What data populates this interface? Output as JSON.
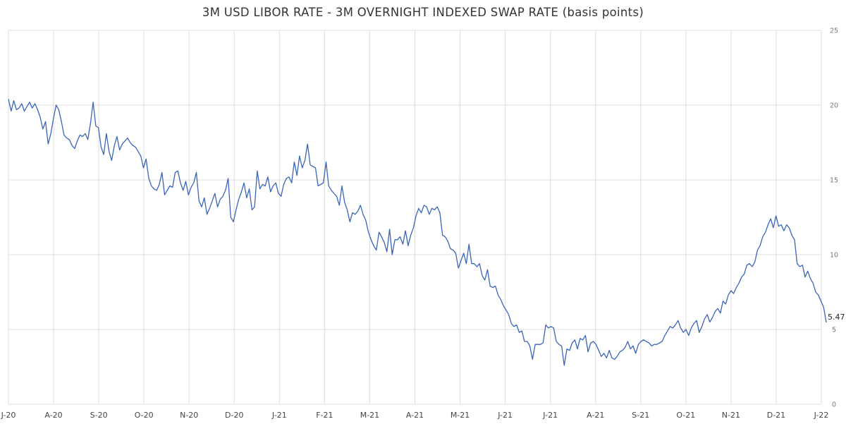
{
  "chart_data": {
    "type": "line",
    "title": "3M USD LIBOR RATE - 3M OVERNIGHT INDEXED SWAP RATE (basis points)",
    "xlabel": "",
    "ylabel": "",
    "ylim": [
      0,
      25
    ],
    "y_ticks": [
      "0",
      "5",
      "10",
      "15",
      "20",
      "25"
    ],
    "x_tick_labels": [
      "J-20",
      "A-20",
      "S-20",
      "O-20",
      "N-20",
      "D-20",
      "J-21",
      "F-21",
      "M-21",
      "A-21",
      "M-21",
      "J-21",
      "J-21",
      "A-21",
      "S-21",
      "O-21",
      "N-21",
      "D-21",
      "J-22"
    ],
    "grid": true,
    "legend": "none",
    "line_color": "#3a64b9",
    "last_value_label": "5.47",
    "series": [
      {
        "x_start": "2020-07-01",
        "x_end": "2022-01-31",
        "values": [
          20.4,
          19.6,
          20.3,
          19.7,
          19.8,
          20.1,
          19.6,
          19.9,
          20.2,
          19.8,
          20.1,
          19.7,
          19.2,
          18.4,
          18.9,
          17.4,
          18.1,
          19.1,
          20.0,
          19.7,
          18.9,
          18.0,
          17.8,
          17.7,
          17.3,
          17.1,
          17.6,
          18.0,
          17.9,
          18.1,
          17.7,
          18.8,
          20.2,
          18.6,
          18.5,
          17.2,
          16.7,
          18.1,
          16.9,
          16.3,
          17.3,
          17.9,
          17.0,
          17.4,
          17.6,
          17.8,
          17.5,
          17.3,
          17.2,
          16.9,
          16.6,
          15.8,
          16.4,
          15.1,
          14.6,
          14.4,
          14.3,
          14.7,
          15.5,
          14.0,
          14.3,
          14.6,
          14.5,
          15.5,
          15.6,
          14.8,
          14.3,
          14.9,
          14.0,
          14.5,
          14.8,
          15.5,
          13.6,
          13.2,
          13.8,
          12.7,
          13.1,
          13.6,
          14.1,
          13.2,
          13.7,
          13.9,
          14.3,
          15.1,
          12.5,
          12.2,
          13.0,
          13.7,
          14.2,
          14.8,
          13.8,
          14.4,
          13.0,
          13.2,
          15.6,
          14.4,
          14.7,
          14.6,
          15.2,
          14.2,
          14.6,
          14.8,
          14.1,
          13.9,
          14.7,
          15.1,
          15.2,
          14.8,
          16.2,
          15.3,
          16.6,
          15.8,
          16.3,
          17.4,
          16.0,
          15.9,
          15.8,
          14.6,
          14.7,
          14.8,
          16.2,
          14.6,
          14.3,
          14.1,
          13.9,
          13.3,
          14.6,
          13.5,
          13.0,
          12.2,
          12.8,
          12.7,
          12.9,
          13.3,
          12.7,
          12.3,
          11.5,
          11.0,
          10.6,
          10.3,
          11.5,
          11.2,
          10.8,
          10.2,
          11.7,
          10.0,
          11.0,
          11.0,
          11.2,
          10.7,
          11.6,
          10.6,
          11.3,
          11.8,
          12.6,
          13.1,
          12.8,
          13.3,
          13.2,
          12.7,
          13.1,
          13.0,
          13.2,
          12.8,
          11.3,
          11.2,
          10.9,
          10.4,
          10.3,
          10.1,
          9.1,
          9.6,
          10.1,
          9.4,
          10.7,
          9.4,
          9.4,
          9.2,
          9.4,
          8.6,
          8.3,
          9.0,
          7.9,
          7.8,
          7.9,
          7.3,
          7.0,
          6.6,
          6.3,
          6.0,
          5.4,
          5.2,
          5.3,
          4.8,
          4.9,
          4.2,
          4.2,
          3.9,
          3.0,
          4.0,
          4.0,
          4.0,
          4.1,
          5.3,
          5.1,
          5.2,
          5.1,
          4.2,
          4.0,
          3.9,
          2.6,
          3.7,
          3.6,
          4.1,
          4.3,
          3.7,
          4.4,
          4.3,
          4.6,
          3.5,
          4.1,
          4.2,
          4.0,
          3.6,
          3.2,
          3.4,
          3.1,
          3.6,
          3.1,
          3.0,
          3.2,
          3.5,
          3.6,
          3.8,
          4.2,
          3.7,
          3.9,
          3.4,
          4.0,
          4.2,
          4.3,
          4.2,
          4.1,
          3.9,
          4.0,
          4.0,
          4.1,
          4.2,
          4.6,
          4.9,
          5.2,
          5.1,
          5.3,
          5.6,
          5.1,
          4.8,
          5.0,
          4.6,
          5.1,
          5.4,
          5.6,
          4.8,
          5.2,
          5.7,
          6.0,
          5.5,
          5.8,
          6.2,
          6.4,
          6.1,
          6.9,
          6.7,
          7.3,
          7.6,
          7.4,
          7.8,
          8.1,
          8.5,
          8.7,
          9.3,
          9.4,
          9.2,
          9.5,
          10.3,
          10.6,
          11.2,
          11.5,
          12.0,
          12.4,
          11.8,
          12.6,
          11.9,
          12.0,
          11.6,
          12.0,
          11.8,
          11.3,
          11.0,
          9.4,
          9.2,
          9.3,
          8.5,
          8.9,
          8.4,
          8.1,
          7.5,
          7.3,
          6.9,
          6.5,
          5.47
        ]
      }
    ]
  }
}
